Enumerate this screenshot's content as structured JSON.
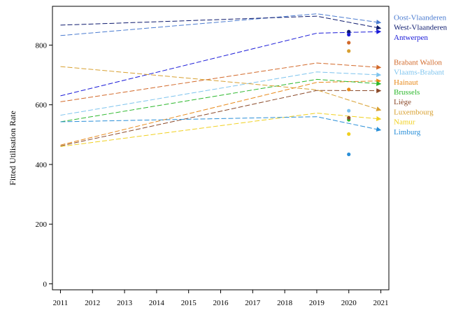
{
  "chart_data": {
    "type": "line",
    "title": "",
    "xlabel": "",
    "ylabel": "Fitted Utilisation Rate",
    "x": [
      2011,
      2019,
      2021
    ],
    "x_ticks": [
      2011,
      2012,
      2013,
      2014,
      2015,
      2016,
      2017,
      2018,
      2019,
      2020,
      2021
    ],
    "xlim": [
      2010.75,
      2021.25
    ],
    "ylim": [
      -20,
      930
    ],
    "y_ticks": [
      0,
      200,
      400,
      600,
      800
    ],
    "grid": false,
    "legend_placement": "right",
    "line_style": "dashed",
    "series": [
      {
        "name": "Oost-Vlaanderen",
        "color": "#4a7bd0",
        "values": [
          832,
          905,
          875
        ],
        "point_2020": 840
      },
      {
        "name": "West-Vlaanderen",
        "color": "#0d1a6e",
        "values": [
          867,
          897,
          856
        ],
        "point_2020": 845
      },
      {
        "name": "Antwerpen",
        "color": "#1a1ad8",
        "values": [
          630,
          840,
          845
        ],
        "point_2020": 835
      },
      {
        "name": "Brabant Wallon",
        "color": "#d2692a",
        "values": [
          610,
          740,
          725
        ],
        "point_2020": 808
      },
      {
        "name": "Vlaams-Brabant",
        "color": "#7ec4ee",
        "values": [
          565,
          710,
          700
        ],
        "point_2020": 580
      },
      {
        "name": "Hainaut",
        "color": "#e88a1a",
        "values": [
          465,
          675,
          680
        ],
        "point_2020": 651
      },
      {
        "name": "Brussels",
        "color": "#2db82d",
        "values": [
          543,
          685,
          670
        ],
        "point_2020": 550
      },
      {
        "name": "Liège",
        "color": "#8b4a2a",
        "values": [
          462,
          648,
          647
        ],
        "point_2020": 556
      },
      {
        "name": "Luxembourg",
        "color": "#d8a030",
        "values": [
          728,
          650,
          582
        ],
        "point_2020": 780
      },
      {
        "name": "Namur",
        "color": "#f0d020",
        "values": [
          460,
          572,
          552
        ],
        "point_2020": 502
      },
      {
        "name": "Limburg",
        "color": "#2a8fd8",
        "values": [
          543,
          560,
          515
        ],
        "point_2020": 434
      }
    ]
  }
}
